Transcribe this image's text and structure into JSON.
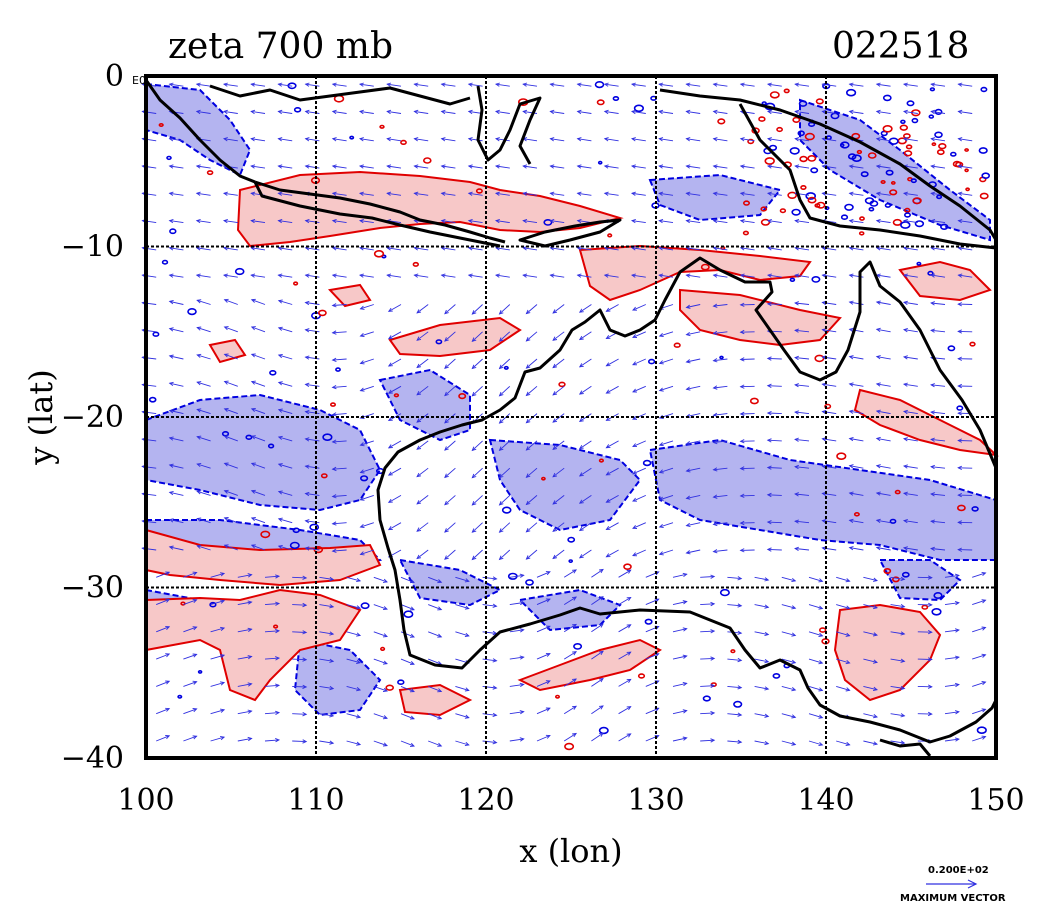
{
  "title_left": "zeta 700 mb",
  "title_right": "022518",
  "zero_label_suffix": "E0",
  "xlabel": "x (lon)",
  "ylabel": "y (lat)",
  "x_ticks": [
    "100",
    "110",
    "120",
    "130",
    "140",
    "150"
  ],
  "y_ticks": [
    "0",
    "−10",
    "−20",
    "−30",
    "−40"
  ],
  "legend": {
    "reference_value": "0.200E+02",
    "reference_caption": "MAXIMUM VECTOR"
  },
  "map": {
    "lon_range": [
      100,
      150
    ],
    "lat_range": [
      -40,
      0
    ],
    "grid_lon": [
      110,
      120,
      130,
      140
    ],
    "grid_lat": [
      -10,
      -20,
      -30
    ],
    "colors": {
      "positive_fill": "#f7c8c8",
      "positive_line": "#e00000",
      "negative_fill": "#b4b4f0",
      "negative_line": "#0000e0",
      "coast": "#000000",
      "vector": "#3030e0"
    }
  }
}
